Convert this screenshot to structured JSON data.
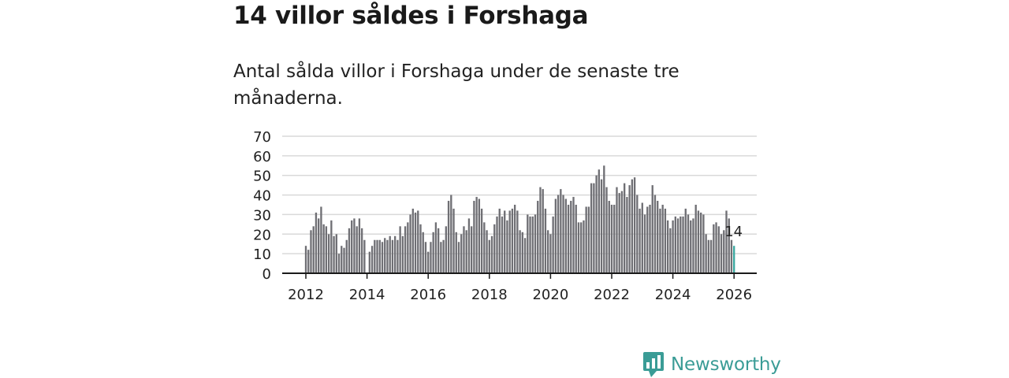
{
  "title": "14 villor såldes i Forshaga",
  "subtitle": "Antal sålda villor i Forshaga under de senaste tre månaderna.",
  "brand": {
    "name": "Newsworthy",
    "logo_icon": "bar-chart-speech-bubble-icon"
  },
  "colors": {
    "bar": "#6f6f74",
    "highlight": "#3aa8a0",
    "grid": "#d9d9d9",
    "axis": "#1a1a1a",
    "brand": "#3a9c96"
  },
  "chart_data": {
    "type": "bar",
    "title": "14 villor såldes i Forshaga",
    "xlabel": "",
    "ylabel": "",
    "ylim": [
      0,
      70
    ],
    "yticks": [
      "0",
      "10",
      "20",
      "30",
      "40",
      "50",
      "60",
      "70"
    ],
    "xticks": [
      "2012",
      "2014",
      "2016",
      "2018",
      "2020",
      "2022",
      "2024",
      "2026"
    ],
    "x_start": "2012-01",
    "x_end": "2026-01",
    "frequency": "monthly (rolling three-month totals)",
    "series": [
      {
        "name": "Antal sålda villor",
        "values": [
          14,
          12,
          22,
          24,
          31,
          28,
          34,
          25,
          24,
          20,
          27,
          19,
          20,
          10,
          14,
          13,
          17,
          23,
          27,
          28,
          24,
          28,
          23,
          17,
          0,
          11,
          14,
          17,
          17,
          17,
          16,
          18,
          17,
          19,
          17,
          19,
          17,
          24,
          19,
          24,
          26,
          30,
          33,
          31,
          32,
          25,
          21,
          16,
          11,
          16,
          21,
          26,
          23,
          16,
          17,
          24,
          37,
          40,
          33,
          21,
          16,
          20,
          24,
          22,
          28,
          24,
          37,
          39,
          38,
          33,
          26,
          22,
          17,
          19,
          25,
          29,
          33,
          29,
          32,
          27,
          32,
          33,
          35,
          32,
          22,
          21,
          18,
          30,
          29,
          29,
          30,
          37,
          44,
          43,
          33,
          22,
          20,
          29,
          38,
          40,
          43,
          40,
          38,
          35,
          37,
          39,
          35,
          26,
          26,
          27,
          34,
          34,
          46,
          46,
          50,
          53,
          48,
          55,
          44,
          37,
          35,
          35,
          44,
          41,
          42,
          46,
          39,
          45,
          48,
          49,
          40,
          33,
          36,
          30,
          34,
          35,
          45,
          40,
          37,
          33,
          35,
          33,
          27,
          23,
          27,
          29,
          28,
          29,
          29,
          33,
          30,
          27,
          28,
          35,
          32,
          31,
          30,
          20,
          17,
          17,
          25,
          26,
          24,
          20,
          22,
          32,
          28,
          17,
          14
        ]
      }
    ],
    "annotations": [
      {
        "label": "14",
        "value": 14,
        "period": "2026-01"
      }
    ]
  }
}
